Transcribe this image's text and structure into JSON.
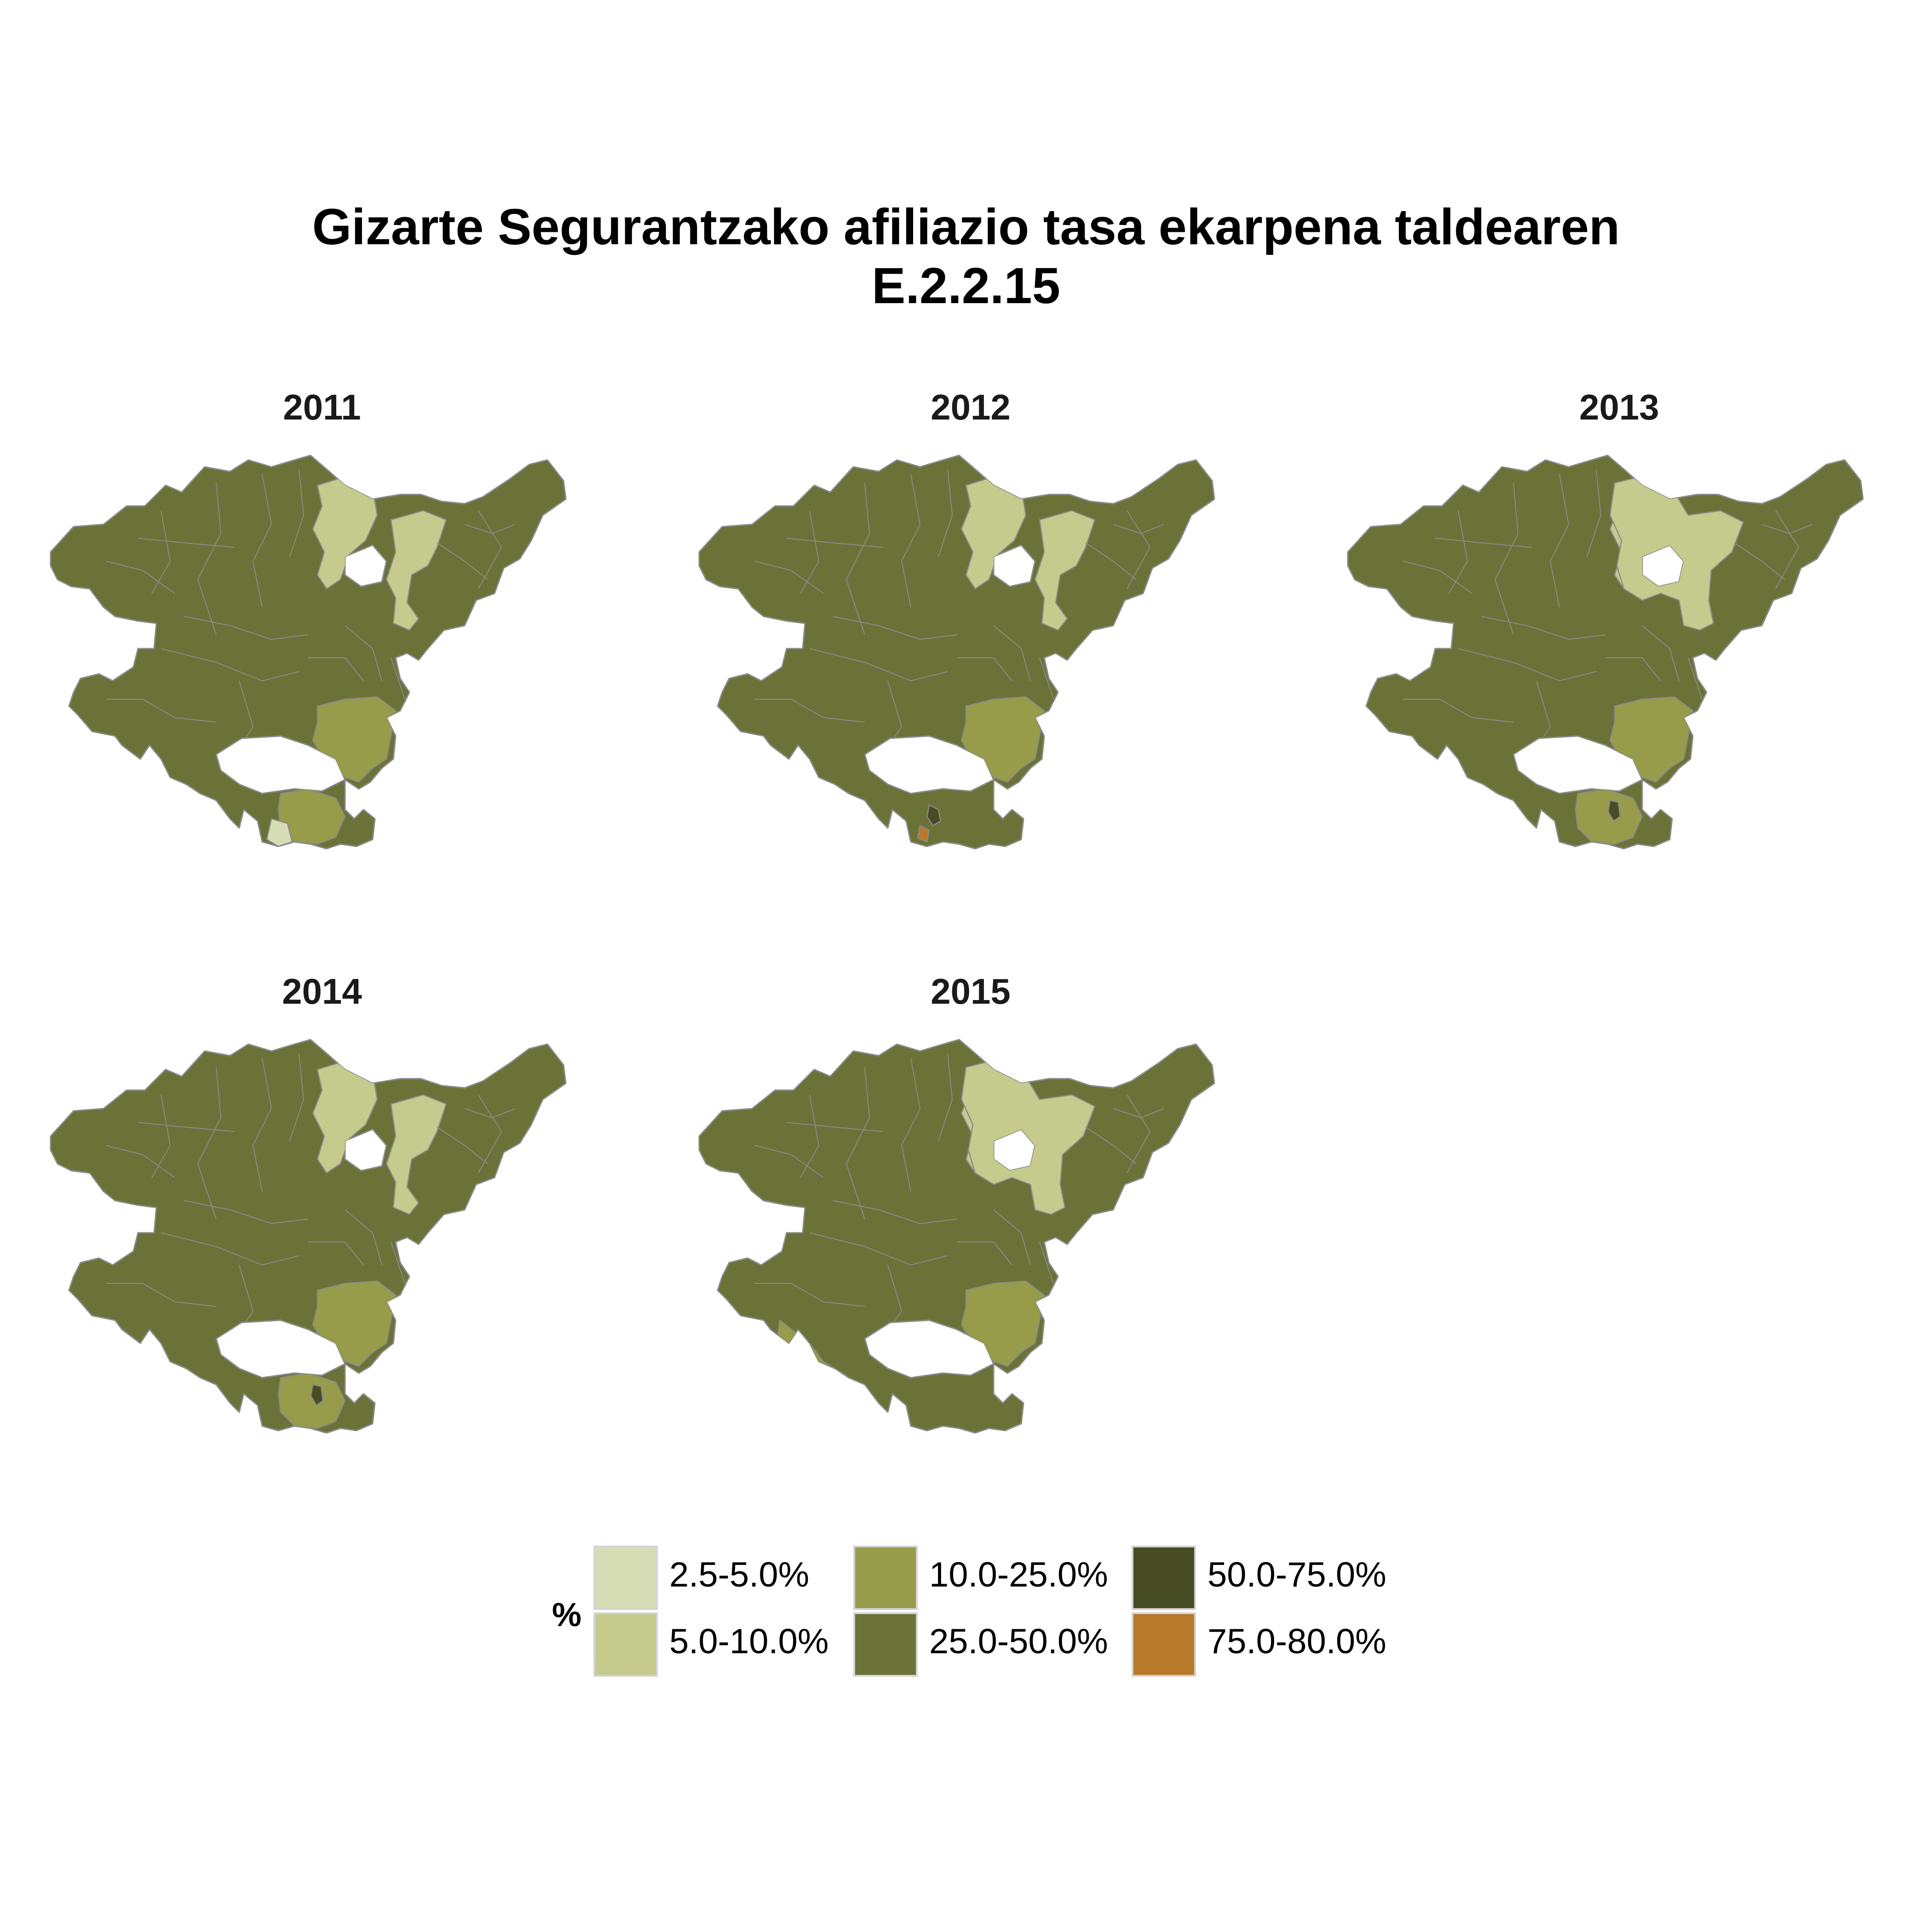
{
  "title_line1": "Gizarte Segurantzako afiliazio tasa ekarpena taldearen",
  "title_line2": "E.2.2.15",
  "colors": {
    "c1": "#d6dcb4",
    "c2": "#c4cb8c",
    "c3": "#969c4a",
    "c4": "#6b7237",
    "c5": "#484c24",
    "c6": "#b8792a",
    "border": "#8a8a8a"
  },
  "panels": [
    {
      "year": "2011",
      "overlay": [
        "lightN",
        "lightE",
        "lightS",
        "lightSS",
        "veryLightSW"
      ]
    },
    {
      "year": "2012",
      "overlay": [
        "lightN",
        "lightE",
        "lightS",
        "darkSpot",
        "orangeSpot"
      ]
    },
    {
      "year": "2013",
      "overlay": [
        "lightN",
        "lightCentral",
        "lightS",
        "lightSS",
        "darkSpot2"
      ]
    },
    {
      "year": "2014",
      "overlay": [
        "lightN",
        "lightE",
        "lightS",
        "lightSS",
        "darkSpot2"
      ]
    },
    {
      "year": "2015",
      "overlay": [
        "lightN",
        "lightCentral",
        "lightS",
        "lightSW"
      ]
    }
  ],
  "legend": {
    "title": "%",
    "items": [
      {
        "label": "2.5-5.0%",
        "color": "#d6dcb4"
      },
      {
        "label": "5.0-10.0%",
        "color": "#c4cb8c"
      },
      {
        "label": "10.0-25.0%",
        "color": "#969c4a"
      },
      {
        "label": "25.0-50.0%",
        "color": "#6b7237"
      },
      {
        "label": "50.0-75.0%",
        "color": "#484c24"
      },
      {
        "label": "75.0-80.0%",
        "color": "#b8792a"
      }
    ]
  }
}
